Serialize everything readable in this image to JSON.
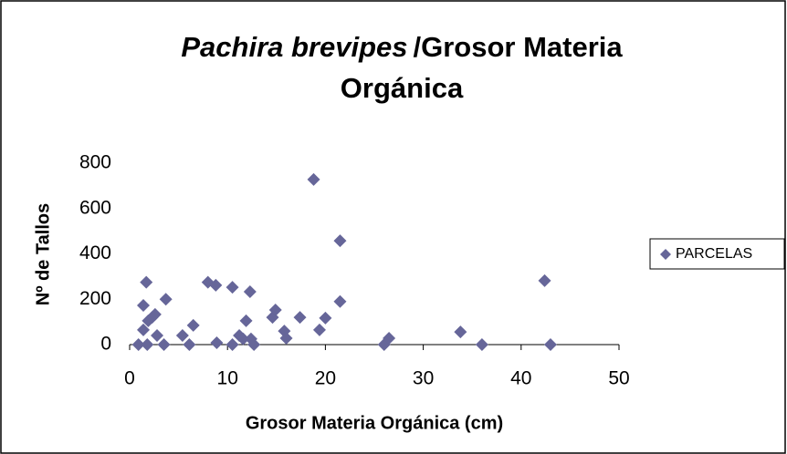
{
  "chart_data": {
    "type": "scatter",
    "title": [
      "Pachira brevipes",
      "/Grosor Materia",
      "Orgánica"
    ],
    "xlabel": "Grosor Materia Orgánica (cm)",
    "ylabel": "Nº de Tallos",
    "xlim": [
      0,
      50
    ],
    "xticks": [
      0,
      10,
      20,
      30,
      40,
      50
    ],
    "ylim": [
      0,
      800
    ],
    "yticks": [
      0,
      200,
      400,
      600,
      800
    ],
    "legend": "right",
    "series": [
      {
        "name": "PARCELAS",
        "color": "#666699",
        "x": [
          0.9,
          1.4,
          1.7,
          1.4,
          1.9,
          1.8,
          2.3,
          2.6,
          2.8,
          3.5,
          3.7,
          5.4,
          6.1,
          6.5,
          8.0,
          8.8,
          8.9,
          10.5,
          10.5,
          11.2,
          11.6,
          11.9,
          12.3,
          12.4,
          12.7,
          14.6,
          14.9,
          15.8,
          16.0,
          17.4,
          18.8,
          19.4,
          20.0,
          21.5,
          21.5,
          26.0,
          26.5,
          33.8,
          36.0,
          42.4,
          43.0
        ],
        "values": [
          0,
          173,
          275,
          65,
          105,
          0,
          120,
          133,
          40,
          0,
          200,
          40,
          0,
          85,
          275,
          262,
          8,
          253,
          0,
          40,
          25,
          105,
          233,
          25,
          0,
          120,
          153,
          60,
          28,
          120,
          728,
          65,
          117,
          458,
          190,
          0,
          28,
          56,
          0,
          282,
          0
        ]
      }
    ]
  }
}
